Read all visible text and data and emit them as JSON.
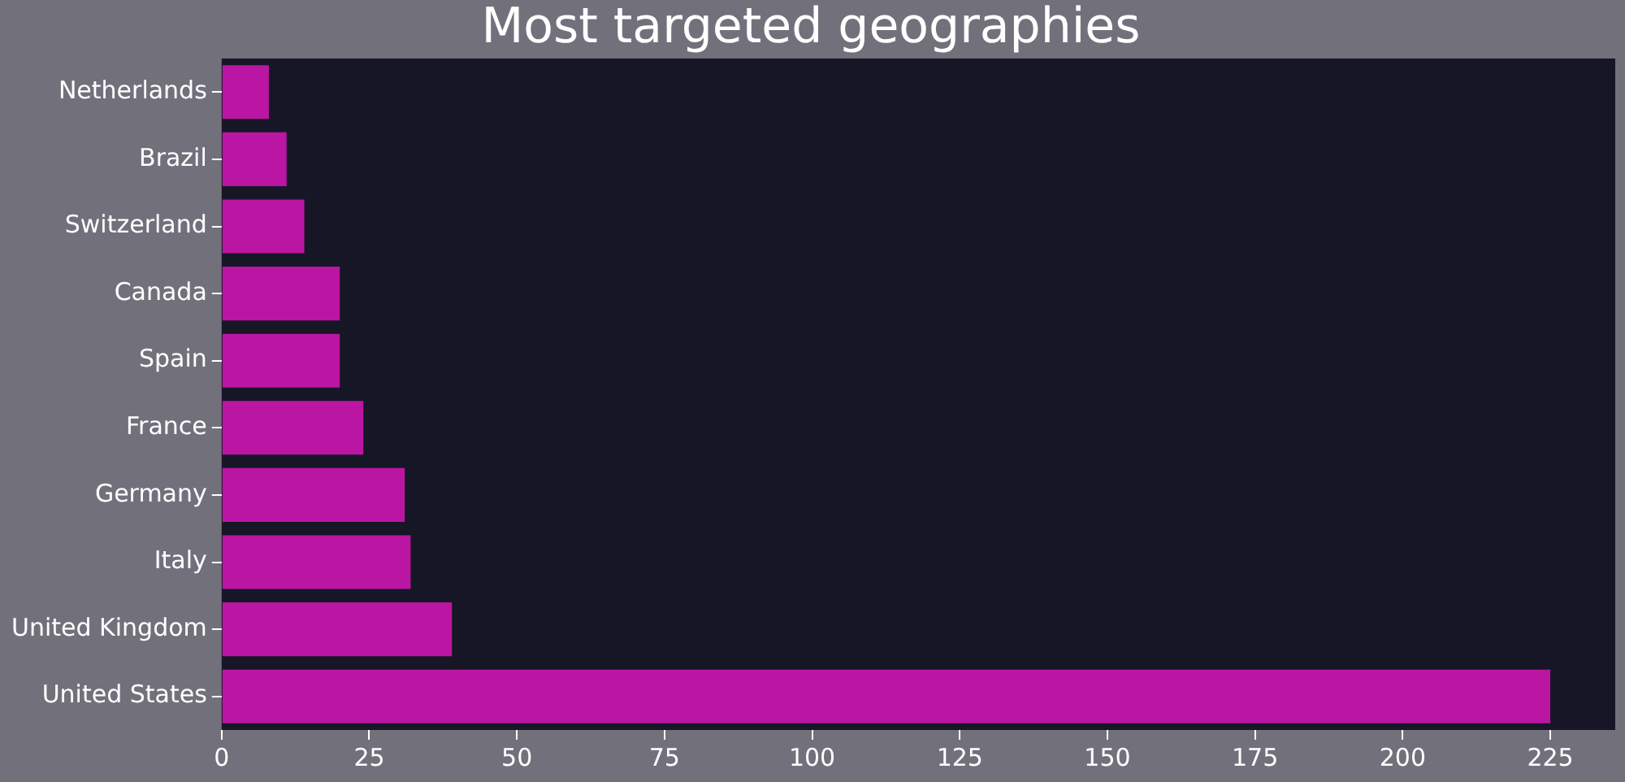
{
  "chart_data": {
    "type": "bar",
    "orientation": "horizontal",
    "title": "Most targeted geographies",
    "categories": [
      "Netherlands",
      "Brazil",
      "Switzerland",
      "Canada",
      "Spain",
      "France",
      "Germany",
      "Italy",
      "United Kingdom",
      "United States"
    ],
    "values": [
      8,
      11,
      14,
      20,
      20,
      24,
      31,
      32,
      39,
      225
    ],
    "color": "#bb16a3",
    "xlim": [
      0,
      236
    ],
    "xticks": [
      0,
      25,
      50,
      75,
      100,
      125,
      150,
      175,
      200,
      225
    ],
    "grid": false,
    "legend": false
  }
}
